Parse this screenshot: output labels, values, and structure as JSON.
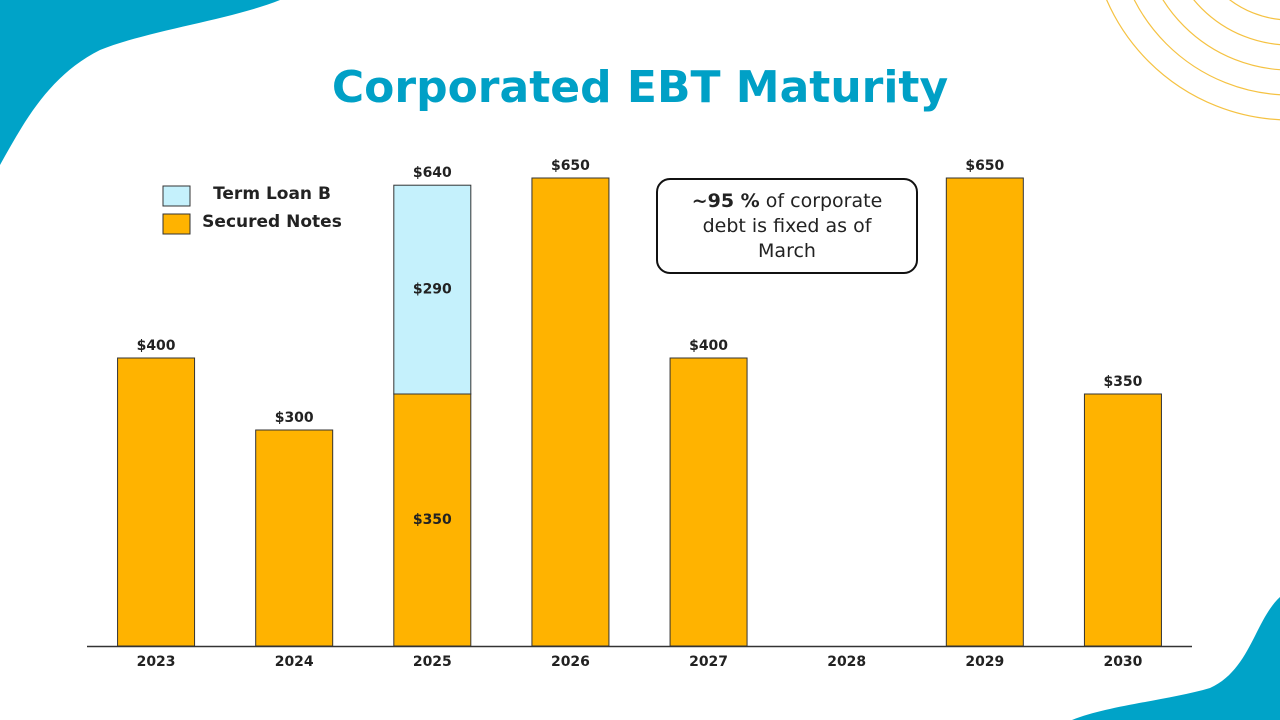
{
  "chart_data": {
    "type": "stacked-bar",
    "title": "Corporated EBT Maturity",
    "categories": [
      "2023",
      "2024",
      "2025",
      "2026",
      "2027",
      "2028",
      "2029",
      "2030"
    ],
    "series": [
      {
        "name": "Secured Notes",
        "color": "#FFB300",
        "values": [
          400,
          300,
          350,
          650,
          400,
          null,
          650,
          350
        ],
        "value_labels": [
          null,
          null,
          "$350",
          null,
          null,
          null,
          null,
          null
        ]
      },
      {
        "name": "Term Loan B",
        "color": "#C5F1FC",
        "values": [
          null,
          null,
          290,
          null,
          null,
          null,
          null,
          null
        ],
        "value_labels": [
          null,
          null,
          "$290",
          null,
          null,
          null,
          null,
          null
        ]
      }
    ],
    "totals": [
      400,
      300,
      640,
      650,
      400,
      null,
      650,
      350
    ],
    "total_labels": [
      "$400",
      "$300",
      "$640",
      "$650",
      "$400",
      null,
      "$650",
      "$350"
    ],
    "ylim": [
      0,
      700
    ],
    "annotation": {
      "bold": "~95 %",
      "text": "of corporate debt is fixed as of March"
    }
  }
}
